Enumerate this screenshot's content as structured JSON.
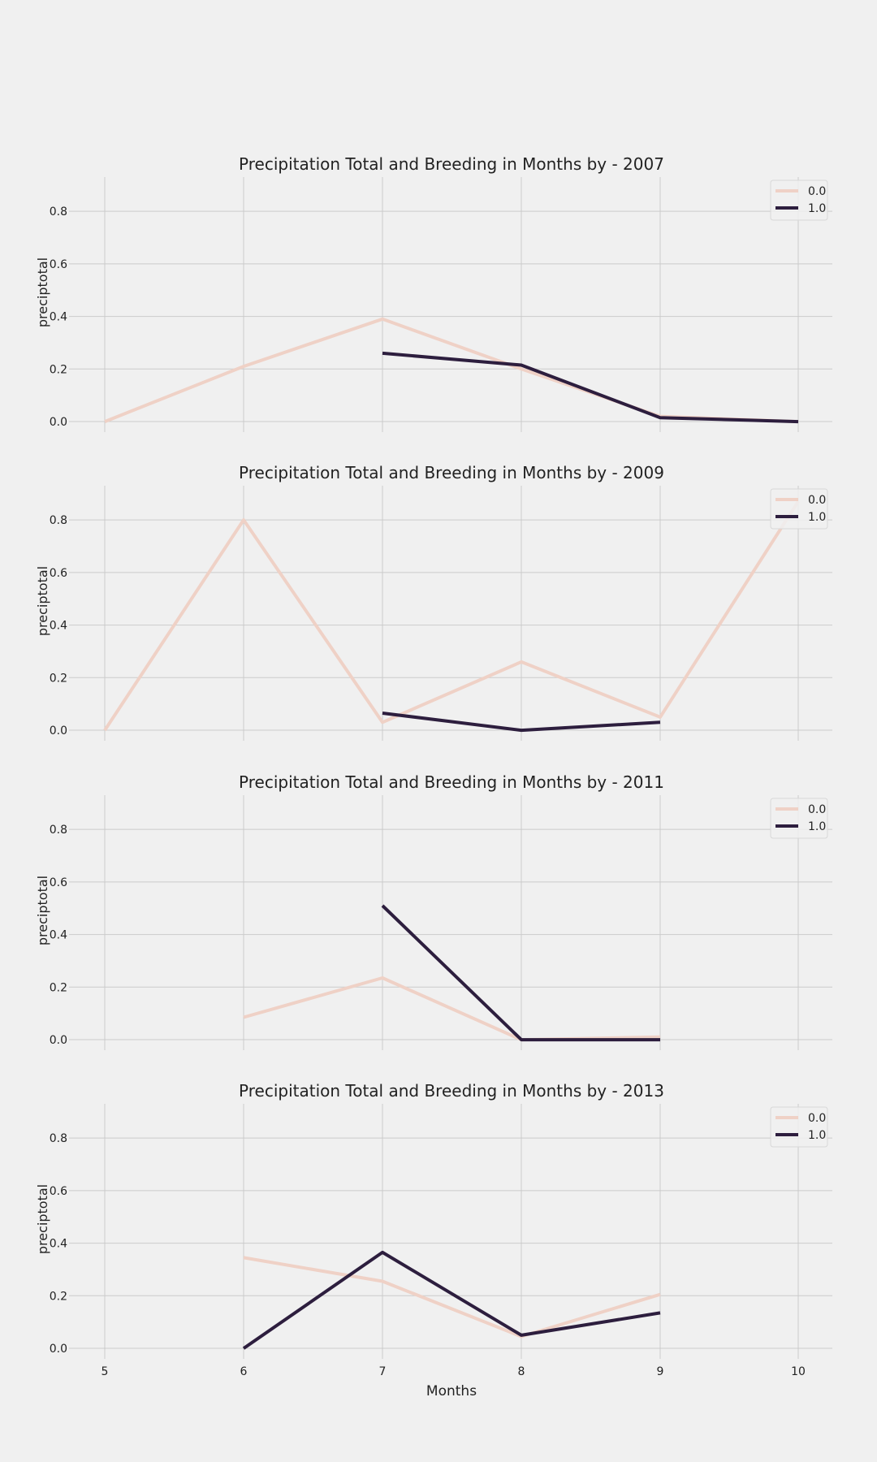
{
  "colors": {
    "background": "#f0f0f0",
    "grid": "#cbcbcb",
    "series_0": "#efd1c6",
    "series_1": "#2d1e3e",
    "text": "#222222"
  },
  "shared": {
    "xlabel": "Months",
    "ylabel": "preciptotal",
    "x_ticks": [
      "5",
      "6",
      "7",
      "8",
      "9",
      "10"
    ],
    "y_ticks": [
      "0.0",
      "0.2",
      "0.4",
      "0.6",
      "0.8"
    ],
    "legend_labels": [
      "0.0",
      "1.0"
    ]
  },
  "chart_data": [
    {
      "type": "line",
      "title": "Precipitation Total and Breeding in Months by - 2007",
      "ylabel": "preciptotal",
      "xlabel": "",
      "xlim": [
        4.75,
        10.25
      ],
      "ylim": [
        -0.04,
        0.93
      ],
      "grid": true,
      "legend": "top-right",
      "series": [
        {
          "name": "0.0",
          "x": [
            5,
            6,
            7,
            8,
            9,
            10
          ],
          "y": [
            0.0,
            0.21,
            0.39,
            0.2,
            0.02,
            0.0
          ]
        },
        {
          "name": "1.0",
          "x": [
            7,
            8,
            9,
            10
          ],
          "y": [
            0.26,
            0.215,
            0.015,
            0.0
          ]
        }
      ]
    },
    {
      "type": "line",
      "title": "Precipitation Total and Breeding in Months by - 2009",
      "ylabel": "preciptotal",
      "xlabel": "",
      "xlim": [
        4.75,
        10.25
      ],
      "ylim": [
        -0.04,
        0.93
      ],
      "grid": true,
      "legend": "top-right",
      "series": [
        {
          "name": "0.0",
          "x": [
            5,
            6,
            7,
            8,
            9,
            10
          ],
          "y": [
            0.0,
            0.8,
            0.03,
            0.26,
            0.05,
            0.87
          ]
        },
        {
          "name": "1.0",
          "x": [
            7,
            8,
            9
          ],
          "y": [
            0.065,
            0.0,
            0.03
          ]
        }
      ]
    },
    {
      "type": "line",
      "title": "Precipitation Total and Breeding in Months by - 2011",
      "ylabel": "preciptotal",
      "xlabel": "",
      "xlim": [
        4.75,
        10.25
      ],
      "ylim": [
        -0.04,
        0.93
      ],
      "grid": true,
      "legend": "top-right",
      "series": [
        {
          "name": "0.0",
          "x": [
            6,
            7,
            8,
            9
          ],
          "y": [
            0.085,
            0.235,
            0.0,
            0.01
          ]
        },
        {
          "name": "1.0",
          "x": [
            7,
            8,
            9
          ],
          "y": [
            0.51,
            0.0,
            0.0
          ]
        }
      ]
    },
    {
      "type": "line",
      "title": "Precipitation Total and Breeding in Months by - 2013",
      "ylabel": "preciptotal",
      "xlabel": "Months",
      "xlim": [
        4.75,
        10.25
      ],
      "ylim": [
        -0.04,
        0.93
      ],
      "grid": true,
      "legend": "top-right",
      "series": [
        {
          "name": "0.0",
          "x": [
            6,
            7,
            8,
            9
          ],
          "y": [
            0.345,
            0.255,
            0.045,
            0.205
          ]
        },
        {
          "name": "1.0",
          "x": [
            6,
            7,
            8,
            9
          ],
          "y": [
            0.0,
            0.365,
            0.05,
            0.135
          ]
        }
      ]
    }
  ]
}
